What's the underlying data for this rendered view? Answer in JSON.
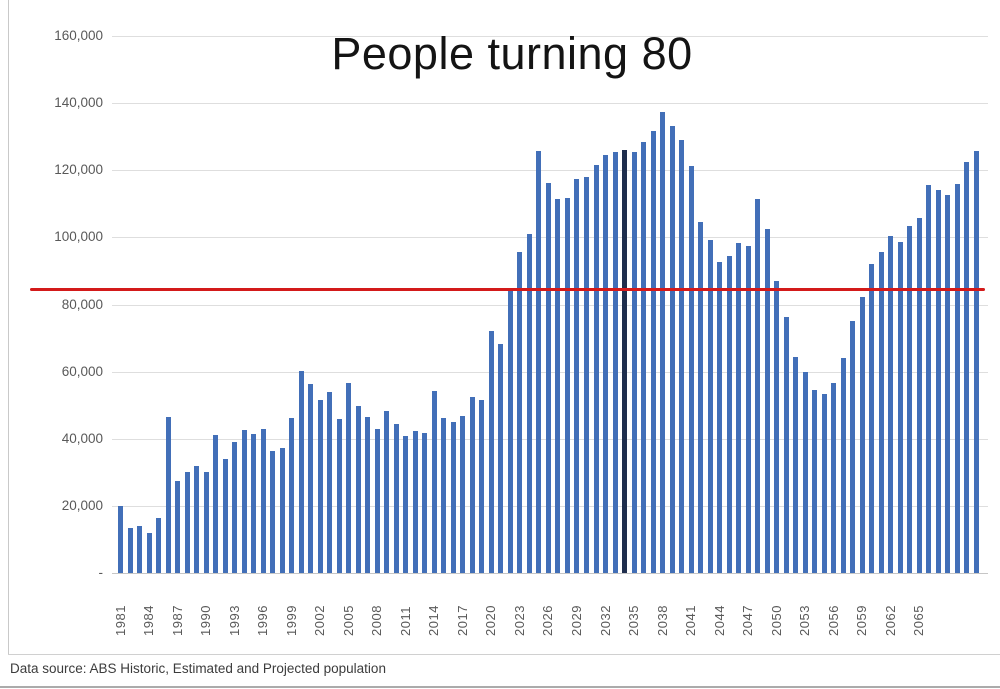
{
  "title": "People turning 80",
  "caption": "Data source: ABS Historic, Estimated and Projected population",
  "colors": {
    "bar": "#426fb8",
    "highlight_bar": "#1f2e4d",
    "reference_line": "#d31a1a",
    "grid": "#dedede",
    "axis_text": "#595959"
  },
  "y_axis": {
    "tick_labels": [
      "160,000",
      "140,000",
      "120,000",
      "100,000",
      "80,000",
      "60,000",
      "40,000",
      "20,000",
      "-"
    ],
    "tick_values": [
      160000,
      140000,
      120000,
      100000,
      80000,
      60000,
      40000,
      20000,
      0
    ]
  },
  "x_axis": {
    "tick_labels": [
      "1981",
      "1984",
      "1987",
      "1990",
      "1993",
      "1996",
      "1999",
      "2002",
      "2005",
      "2008",
      "2011",
      "2014",
      "2017",
      "2020",
      "2023",
      "2026",
      "2029",
      "2032",
      "2035",
      "2038",
      "2041",
      "2044",
      "2047",
      "2050",
      "2053",
      "2056",
      "2059",
      "2062",
      "2065"
    ]
  },
  "reference_line": {
    "value": 84500
  },
  "highlight_year": 2034,
  "chart_data": {
    "type": "bar",
    "title": "People turning 80",
    "xlabel": "",
    "ylabel": "",
    "ylim": [
      0,
      160000
    ],
    "grid": true,
    "legend": false,
    "categories": [
      1981,
      1982,
      1983,
      1984,
      1985,
      1986,
      1987,
      1988,
      1989,
      1990,
      1991,
      1992,
      1993,
      1994,
      1995,
      1996,
      1997,
      1998,
      1999,
      2000,
      2001,
      2002,
      2003,
      2004,
      2005,
      2006,
      2007,
      2008,
      2009,
      2010,
      2011,
      2012,
      2013,
      2014,
      2015,
      2016,
      2017,
      2018,
      2019,
      2020,
      2021,
      2022,
      2023,
      2024,
      2025,
      2026,
      2027,
      2028,
      2029,
      2030,
      2031,
      2032,
      2033,
      2034,
      2035,
      2036,
      2037,
      2038,
      2039,
      2040,
      2041,
      2042,
      2043,
      2044,
      2045,
      2046,
      2047,
      2048,
      2049,
      2050,
      2051,
      2052,
      2053,
      2054,
      2055,
      2056,
      2057,
      2058,
      2059,
      2060,
      2061,
      2062,
      2063,
      2064,
      2065,
      2066,
      2067,
      2068,
      2069,
      2070,
      2071
    ],
    "values": [
      20000,
      13500,
      14000,
      12000,
      16500,
      46500,
      27500,
      30000,
      32000,
      30000,
      41000,
      34000,
      39000,
      42500,
      41300,
      43000,
      36300,
      37100,
      46300,
      60300,
      56400,
      51500,
      53900,
      46000,
      56600,
      49900,
      46500,
      43000,
      48400,
      44400,
      40700,
      42400,
      41700,
      54300,
      46200,
      44900,
      46900,
      52500,
      51500,
      72100,
      68200,
      84300,
      95500,
      100900,
      125700,
      116100,
      111400,
      111700,
      117300,
      118000,
      121500,
      124600,
      125400,
      126000,
      125500,
      128500,
      131800,
      137300,
      133200,
      129100,
      121400,
      104700,
      99200,
      92800,
      94500,
      98200,
      97400,
      111500,
      102600,
      87000,
      76400,
      64500,
      60000,
      54500,
      53400,
      56500,
      64000,
      75000,
      82100,
      92100,
      95500,
      100500,
      98600,
      103400,
      105900,
      115500,
      114000,
      112500,
      116000,
      122500,
      125800
    ],
    "annotations": [
      {
        "name": "reference-line",
        "value": 84500,
        "color": "#d31a1a"
      },
      {
        "name": "highlighted-bar",
        "year": 2034,
        "color": "#1f2e4d"
      }
    ]
  }
}
